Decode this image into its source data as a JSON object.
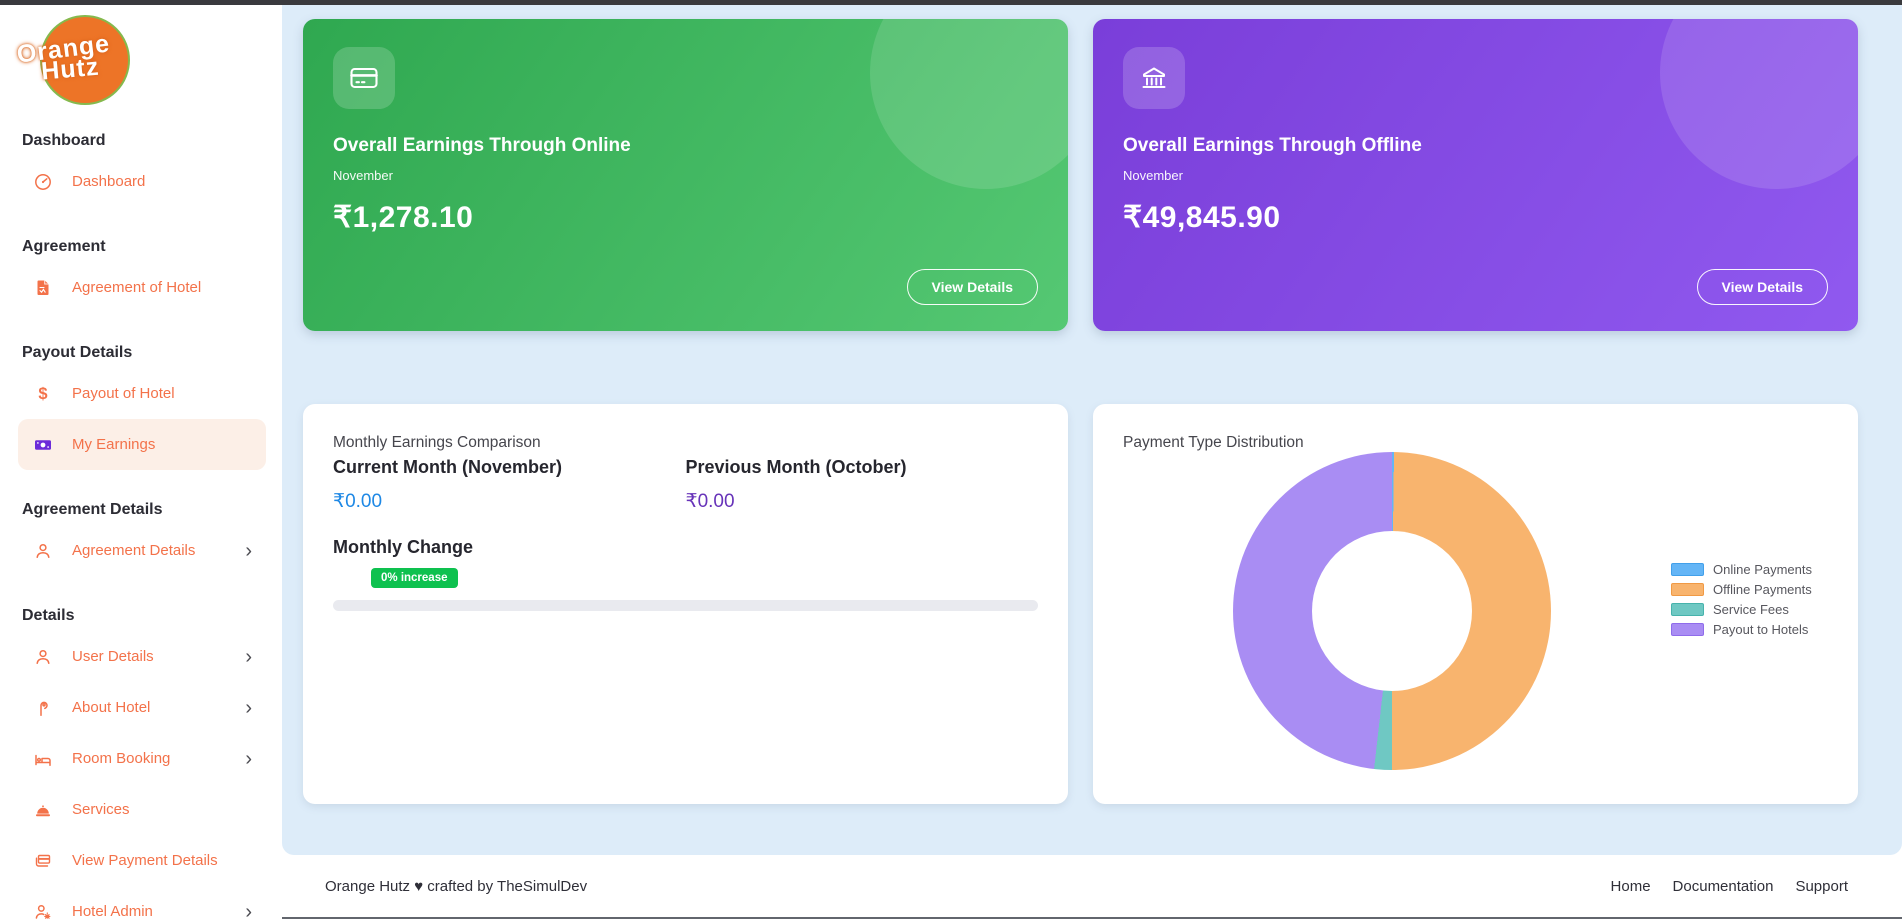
{
  "sidebar": {
    "logo_line1": "Orange",
    "logo_line2": "Hutz",
    "sections": [
      {
        "header": "Dashboard",
        "items": [
          {
            "label": "Dashboard",
            "icon": "gauge-icon"
          }
        ]
      },
      {
        "header": "Agreement",
        "items": [
          {
            "label": "Agreement of Hotel",
            "icon": "file-contract-icon"
          }
        ]
      },
      {
        "header": "Payout Details",
        "items": [
          {
            "label": "Payout of Hotel",
            "icon": "dollar-icon"
          },
          {
            "label": "My Earnings",
            "icon": "money-bill-icon",
            "icon_color": "#6c2bd9",
            "active": true
          }
        ]
      },
      {
        "header": "Agreement Details",
        "items": [
          {
            "label": "Agreement Details",
            "icon": "user-icon",
            "chevron": true
          }
        ]
      },
      {
        "header": "Details",
        "items": [
          {
            "label": "User Details",
            "icon": "user-icon",
            "chevron": true
          },
          {
            "label": "About Hotel",
            "icon": "door-hanger-icon",
            "chevron": true
          },
          {
            "label": "Room Booking",
            "icon": "bed-icon",
            "chevron": true
          },
          {
            "label": "Services",
            "icon": "bell-icon"
          },
          {
            "label": "View Payment Details",
            "icon": "payment-cards-icon"
          },
          {
            "label": "Hotel Admin",
            "icon": "user-gear-icon",
            "chevron": true
          }
        ]
      }
    ]
  },
  "summary_cards": [
    {
      "id": "online",
      "icon": "credit-card-icon",
      "title": "Overall Earnings Through Online",
      "period": "November",
      "amount": "₹1,278.10",
      "button_label": "View Details",
      "gradient_from": "#2fa850",
      "gradient_to": "#55c873"
    },
    {
      "id": "offline",
      "icon": "bank-icon",
      "title": "Overall Earnings Through Offline",
      "period": "November",
      "amount": "₹49,845.90",
      "button_label": "View Details",
      "gradient_from": "#7a3ed9",
      "gradient_to": "#9059ef"
    }
  ],
  "comparison": {
    "title": "Monthly Earnings Comparison",
    "current_label": "Current Month (November)",
    "current_value": "₹0.00",
    "current_color": "#1e88e5",
    "previous_label": "Previous Month (October)",
    "previous_value": "₹0.00",
    "previous_color": "#6733b9",
    "change_label": "Monthly Change",
    "change_badge": "0% increase",
    "badge_color": "#0ec14f",
    "progress_percent": 0
  },
  "chart_data": {
    "type": "pie",
    "donut": true,
    "title": "Payment Type Distribution",
    "labels": [
      "Online Payments",
      "Offline Payments",
      "Service Fees",
      "Payout to Hotels"
    ],
    "values_percent": [
      0.2,
      49.8,
      1.8,
      48.2
    ],
    "colors": [
      "#64b5f6",
      "#f8b46e",
      "#6fc8c3",
      "#a98df3"
    ],
    "border_colors": [
      "#42a0ea",
      "#f09a45",
      "#47b3ac",
      "#8f6ceb"
    ],
    "legend_position": "right",
    "start_angle_deg": 0,
    "direction": "clockwise"
  },
  "footer": {
    "credit": "Orange Hutz ♥ crafted by TheSimulDev",
    "links": [
      "Home",
      "Documentation",
      "Support"
    ]
  }
}
